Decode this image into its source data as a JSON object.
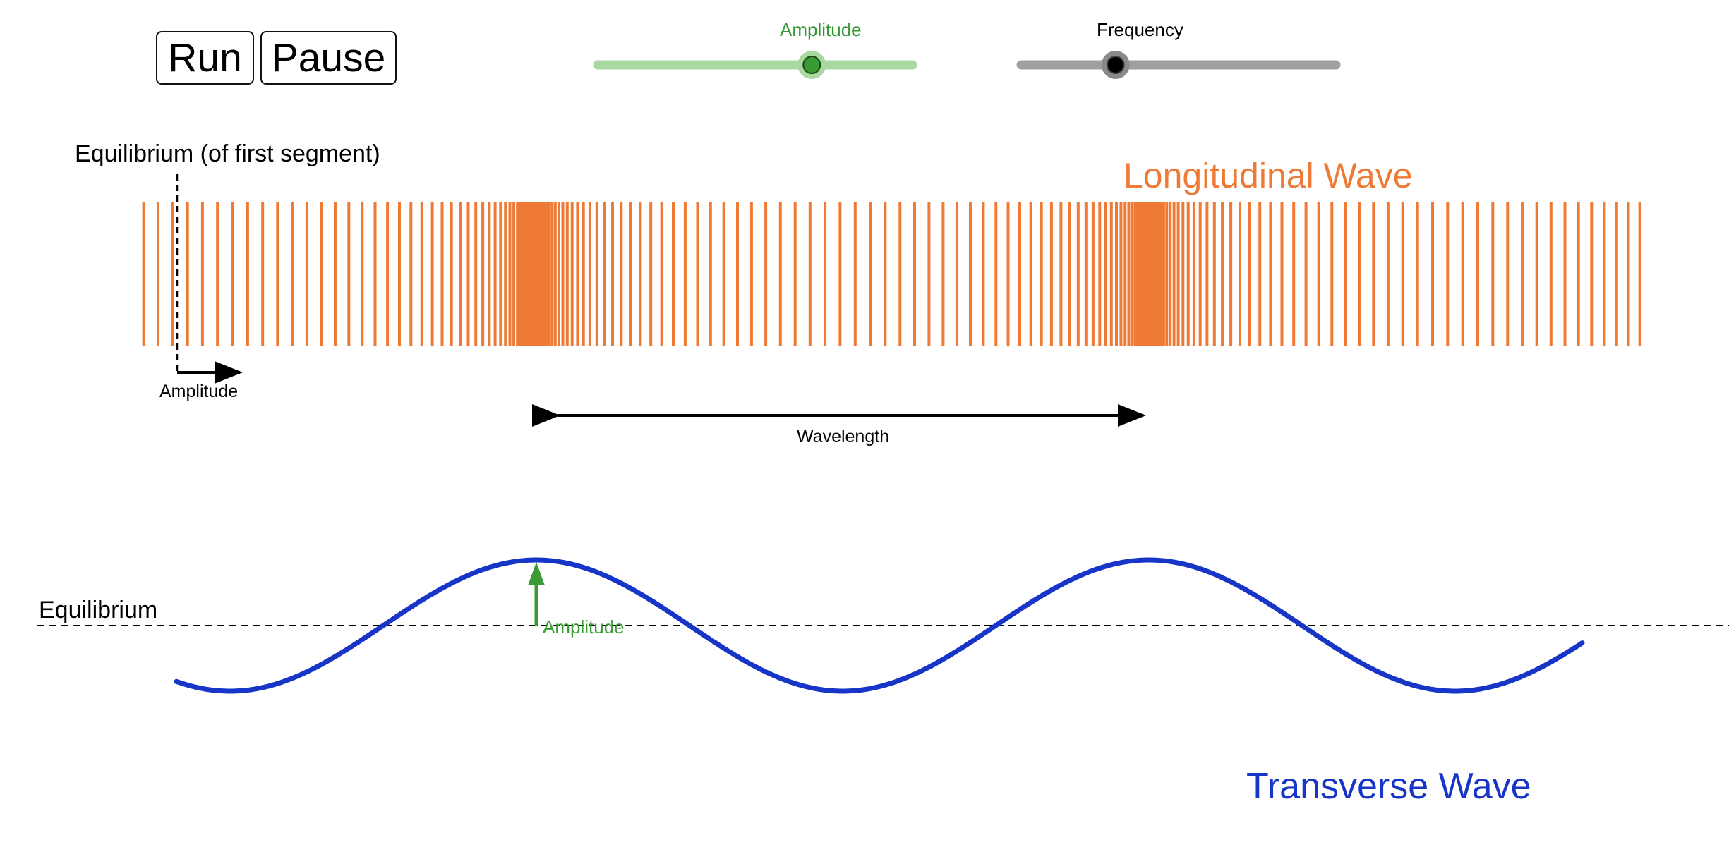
{
  "controls": {
    "run_label": "Run",
    "pause_label": "Pause",
    "amplitude_label": "Amplitude",
    "frequency_label": "Frequency",
    "amplitude_value": 0.68,
    "frequency_value": 0.3
  },
  "longitudinal": {
    "title": "Longitudinal Wave",
    "equilibrium_label": "Equilibrium (of first segment)",
    "amplitude_label": "Amplitude",
    "wavelength_label": "Wavelength"
  },
  "transverse": {
    "title": "Transverse Wave",
    "equilibrium_label": "Equilibrium",
    "amplitude_label": "Amplitude"
  },
  "colors": {
    "longitudinal": "#ef7a35",
    "transverse": "#1735c6",
    "amplitude": "#3a9a34",
    "amplitude_track": "#a9d8a0",
    "frequency_track": "#a0a0a0"
  }
}
